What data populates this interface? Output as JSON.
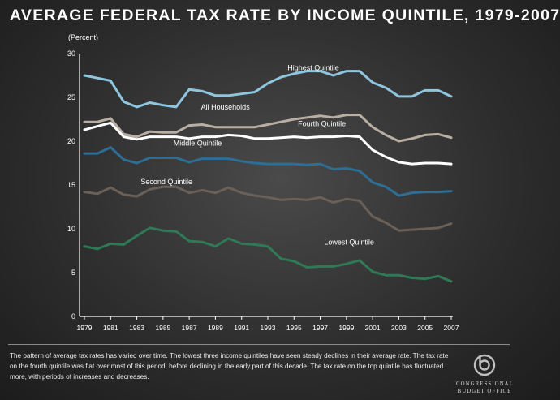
{
  "title": "AVERAGE FEDERAL TAX RATE BY INCOME QUINTILE, 1979-2007",
  "caption": "The pattern of average tax rates has varied over time. The lowest three income quintiles have seen steady declines in their average rate. The tax rate on the fourth quintile was flat over most of this period, before declining in the early part of this decade. The tax rate on the top quintile has fluctuated more, with periods of increases and decreases.",
  "logo": {
    "line1": "Congressional",
    "line2": "Budget Office"
  },
  "colors": {
    "highest": "#8ec6df",
    "all": "#b8aea2",
    "fourth": "#ffffff",
    "middle": "#2c6e96",
    "second": "#6b6058",
    "lowest": "#2f7a56"
  },
  "chart_data": {
    "type": "line",
    "title": "AVERAGE FEDERAL TAX RATE BY INCOME QUINTILE, 1979-2007",
    "ylabel": "(Percent)",
    "xlabel": "",
    "ylim": [
      0,
      30
    ],
    "yticks": [
      0,
      5,
      10,
      15,
      20,
      25,
      30
    ],
    "xticks": [
      1979,
      1981,
      1983,
      1985,
      1987,
      1989,
      1991,
      1993,
      1995,
      1997,
      1999,
      2001,
      2003,
      2005,
      2007
    ],
    "grid": false,
    "legend": "inline labels",
    "x": [
      1979,
      1980,
      1981,
      1982,
      1983,
      1984,
      1985,
      1986,
      1987,
      1988,
      1989,
      1990,
      1991,
      1992,
      1993,
      1994,
      1995,
      1996,
      1997,
      1998,
      1999,
      2000,
      2001,
      2002,
      2003,
      2004,
      2005,
      2006,
      2007
    ],
    "series": [
      {
        "key": "highest",
        "name": "Highest Quintile",
        "values": [
          27.5,
          27.2,
          26.9,
          24.5,
          23.9,
          24.4,
          24.1,
          23.9,
          25.9,
          25.7,
          25.2,
          25.2,
          25.4,
          25.6,
          26.6,
          27.3,
          27.7,
          28.0,
          28.0,
          27.5,
          28.0,
          28.0,
          26.7,
          26.1,
          25.1,
          25.1,
          25.8,
          25.8,
          25.1
        ]
      },
      {
        "key": "all",
        "name": "All Households",
        "values": [
          22.2,
          22.2,
          22.6,
          20.8,
          20.5,
          21.1,
          21.0,
          21.0,
          21.8,
          21.9,
          21.6,
          21.6,
          21.6,
          21.6,
          21.9,
          22.2,
          22.5,
          22.7,
          22.9,
          22.7,
          23.0,
          23.0,
          21.6,
          20.7,
          20.0,
          20.3,
          20.7,
          20.8,
          20.4
        ]
      },
      {
        "key": "fourth",
        "name": "Fourth Quintile",
        "values": [
          21.3,
          21.7,
          22.1,
          20.5,
          20.2,
          20.5,
          20.5,
          20.5,
          20.3,
          20.5,
          20.5,
          20.7,
          20.6,
          20.3,
          20.3,
          20.4,
          20.5,
          20.4,
          20.5,
          20.5,
          20.6,
          20.5,
          19.0,
          18.2,
          17.6,
          17.4,
          17.5,
          17.5,
          17.4
        ]
      },
      {
        "key": "middle",
        "name": "Middle Quintile",
        "values": [
          18.6,
          18.6,
          19.3,
          17.9,
          17.5,
          18.1,
          18.1,
          18.1,
          17.6,
          18.0,
          18.0,
          18.0,
          17.7,
          17.5,
          17.4,
          17.4,
          17.4,
          17.3,
          17.4,
          16.8,
          16.9,
          16.6,
          15.3,
          14.8,
          13.8,
          14.1,
          14.2,
          14.2,
          14.3
        ]
      },
      {
        "key": "second",
        "name": "Second Quintile",
        "values": [
          14.2,
          14.0,
          14.7,
          13.9,
          13.7,
          14.5,
          14.8,
          14.8,
          14.1,
          14.4,
          14.1,
          14.7,
          14.1,
          13.8,
          13.6,
          13.3,
          13.4,
          13.3,
          13.6,
          13.0,
          13.4,
          13.2,
          11.4,
          10.7,
          9.8,
          9.9,
          10.0,
          10.1,
          10.6
        ]
      },
      {
        "key": "lowest",
        "name": "Lowest Quintile",
        "values": [
          8.0,
          7.7,
          8.3,
          8.2,
          9.2,
          10.1,
          9.8,
          9.7,
          8.6,
          8.5,
          8.0,
          8.9,
          8.3,
          8.2,
          8.0,
          6.6,
          6.3,
          5.6,
          5.7,
          5.7,
          6.0,
          6.4,
          5.1,
          4.7,
          4.7,
          4.4,
          4.3,
          4.6,
          4.0
        ]
      }
    ],
    "annotations": [
      {
        "series": "highest",
        "text": "Highest Quintile"
      },
      {
        "series": "all",
        "text": "All Households"
      },
      {
        "series": "fourth",
        "text": "Fourth Quintile"
      },
      {
        "series": "middle",
        "text": "Middle Quintile"
      },
      {
        "series": "second",
        "text": "Second Quintile"
      },
      {
        "series": "lowest",
        "text": "Lowest Quintile"
      }
    ]
  }
}
